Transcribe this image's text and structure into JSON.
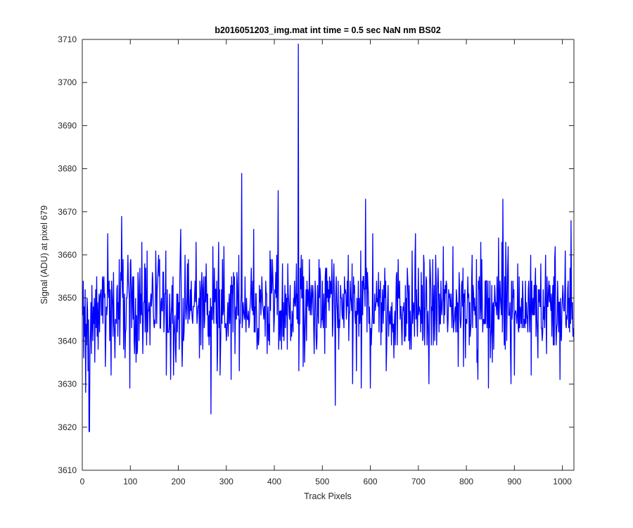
{
  "figure": {
    "title": "b2016051203_img.mat int time = 0.5 sec  NaN nm BS02"
  },
  "chart_data": {
    "type": "line",
    "title": "b2016051203_img.mat int time = 0.5 sec  NaN nm BS02",
    "xlabel": "Track Pixels",
    "ylabel": "Signal (ADU) at pixel 679",
    "xlim": [
      0,
      1024
    ],
    "ylim": [
      3610,
      3710
    ],
    "xticks": [
      "0",
      "100",
      "200",
      "300",
      "400",
      "500",
      "600",
      "700",
      "800",
      "900",
      "1000"
    ],
    "yticks": [
      "3610",
      "3620",
      "3630",
      "3640",
      "3650",
      "3660",
      "3670",
      "3680",
      "3690",
      "3700",
      "3710"
    ],
    "grid": false,
    "legend": "none",
    "series": [
      {
        "color": "#0000ff",
        "x_start": 1,
        "x_step": 1,
        "noise_sample_values": [
          3646,
          3654,
          3636,
          3648,
          3641,
          3652,
          3628,
          3644,
          3639,
          3650,
          3647,
          3633,
          3645,
          3619,
          3651,
          3638,
          3642,
          3649,
          3637,
          3653,
          3645,
          3640,
          3648,
          3644,
          3650,
          3635,
          3647,
          3652,
          3643,
          3655,
          3641,
          3649,
          3638,
          3646,
          3651,
          3642
        ],
        "spikes": [
          {
            "x": 15,
            "y": 3619
          },
          {
            "x": 82,
            "y": 3669
          },
          {
            "x": 332,
            "y": 3679
          },
          {
            "x": 408,
            "y": 3675
          },
          {
            "x": 450,
            "y": 3709
          },
          {
            "x": 268,
            "y": 3623
          },
          {
            "x": 527,
            "y": 3625
          },
          {
            "x": 590,
            "y": 3673
          },
          {
            "x": 876,
            "y": 3673
          },
          {
            "x": 1018,
            "y": 3668
          }
        ],
        "mean": 3648,
        "spread": 6
      }
    ]
  }
}
